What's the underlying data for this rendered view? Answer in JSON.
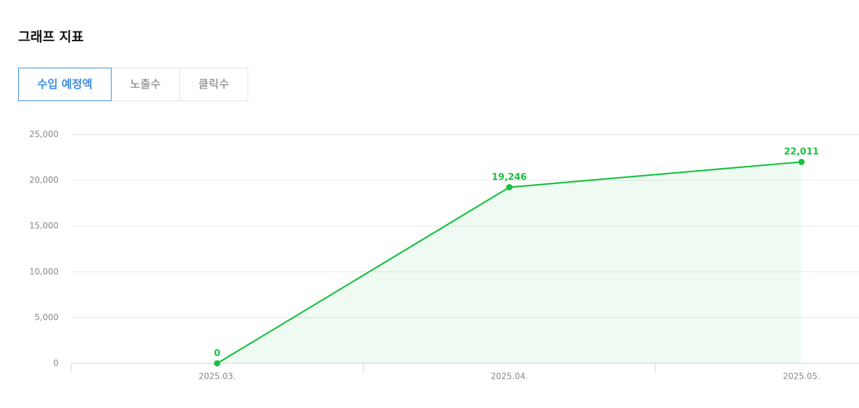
{
  "header": {
    "title": "그래프 지표"
  },
  "tabs": [
    "수입 예정액",
    "노출수",
    "클릭수"
  ],
  "chart_data": {
    "type": "line",
    "categories": [
      "2025.03.",
      "2025.04.",
      "2025.05."
    ],
    "values": [
      0,
      19246,
      22011
    ],
    "value_labels": [
      "0",
      "19,246",
      "22,011"
    ],
    "color": "#17c140",
    "area": true,
    "ylim": [
      0,
      25000
    ],
    "yticks": [
      0,
      {
        "value": 5000,
        "label": "5,000"
      },
      {
        "value": 10000,
        "label": "10,000"
      },
      {
        "value": 15000,
        "label": "15,000"
      },
      {
        "value": 20000,
        "label": "20,000"
      },
      {
        "value": 25000,
        "label": "25,000"
      }
    ],
    "grid": true
  }
}
